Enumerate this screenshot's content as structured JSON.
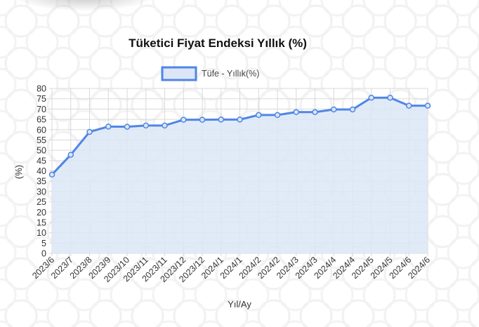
{
  "chart_data": {
    "type": "line",
    "title": "Tüketici Fiyat Endeksi Yıllık (%)",
    "xlabel": "Yıl/Ay",
    "ylabel": "(%)",
    "ylim": [
      0,
      80
    ],
    "y_step": 5,
    "grid": true,
    "legend_position": "top-center",
    "categories": [
      "2023/6",
      "2023/7",
      "2023/8",
      "2023/9",
      "2023/10",
      "2023/11",
      "2023/11",
      "2023/12",
      "2023/12",
      "2024/1",
      "2024/1",
      "2024/2",
      "2024/2",
      "2024/3",
      "2024/3",
      "2024/4",
      "2024/4",
      "2024/5",
      "2024/5",
      "2024/6",
      "2024/6"
    ],
    "series": [
      {
        "name": "Tüfe - Yıllık(%)",
        "color": "#4f86e6",
        "fill_color": "#dce6f6",
        "values": [
          38.2,
          47.8,
          58.9,
          61.5,
          61.4,
          62.0,
          62.0,
          64.8,
          64.8,
          64.9,
          64.9,
          67.1,
          67.1,
          68.5,
          68.5,
          69.8,
          69.8,
          75.5,
          75.5,
          71.6,
          71.6
        ]
      }
    ]
  }
}
